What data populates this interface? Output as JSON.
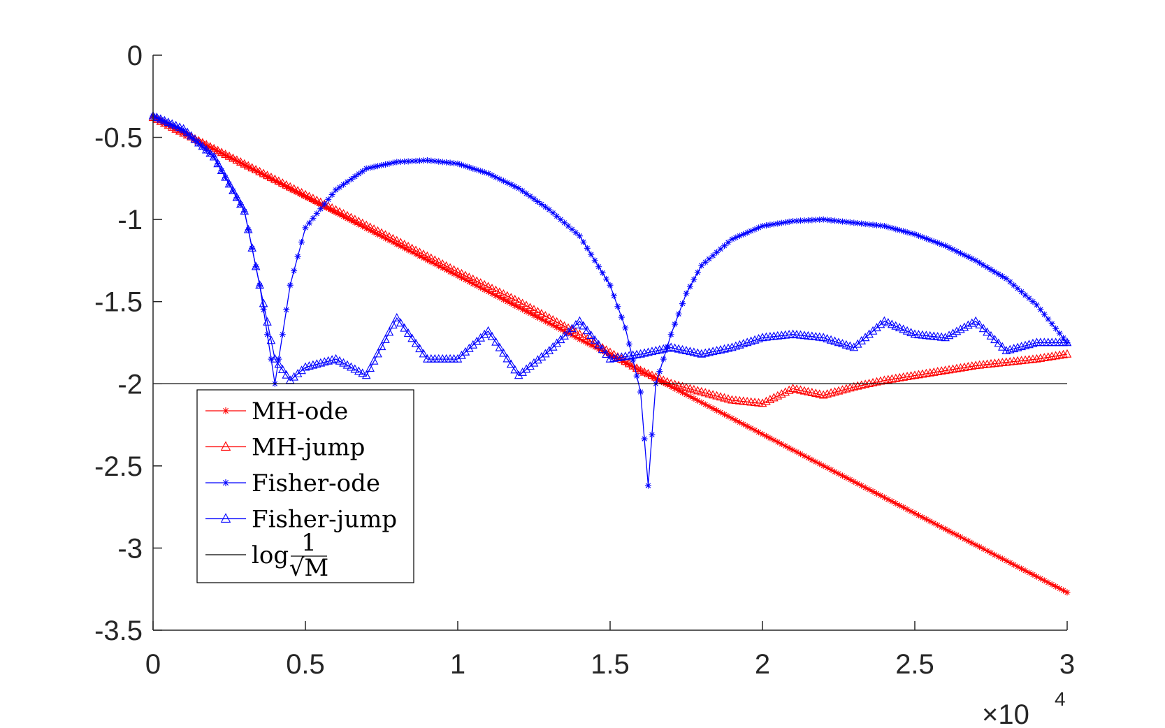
{
  "chart_data": {
    "type": "line",
    "title": "",
    "xlabel": "",
    "ylabel": "",
    "x_multiplier": "×10",
    "x_multiplier_exponent": "4",
    "xlim": [
      0,
      3
    ],
    "ylim": [
      -3.5,
      0
    ],
    "xticks": [
      "0",
      "0.5",
      "1",
      "1.5",
      "2",
      "2.5",
      "3"
    ],
    "yticks": [
      "0",
      "-0.5",
      "-1",
      "-1.5",
      "-2",
      "-2.5",
      "-3",
      "-3.5"
    ],
    "grid": false,
    "legend_position": "lower-left",
    "series": [
      {
        "name": "MH-ode",
        "color": "#ff0000",
        "marker": "star",
        "x": [
          0,
          3
        ],
        "y": [
          -0.38,
          -3.27
        ]
      },
      {
        "name": "MH-jump",
        "color": "#ff0000",
        "marker": "triangle",
        "x": [
          0,
          0.2,
          0.5,
          0.8,
          1.0,
          1.2,
          1.4,
          1.6,
          1.7,
          1.8,
          1.9,
          2.0,
          2.1,
          2.2,
          2.3,
          2.4,
          2.5,
          2.6,
          2.7,
          2.8,
          2.9,
          3.0
        ],
        "y": [
          -0.38,
          -0.57,
          -0.85,
          -1.13,
          -1.32,
          -1.5,
          -1.7,
          -1.92,
          -2.0,
          -2.05,
          -2.1,
          -2.12,
          -2.03,
          -2.07,
          -2.02,
          -1.98,
          -1.95,
          -1.92,
          -1.89,
          -1.87,
          -1.85,
          -1.82
        ]
      },
      {
        "name": "Fisher-ode",
        "color": "#0000ff",
        "marker": "star",
        "x": [
          0,
          0.1,
          0.2,
          0.3,
          0.35,
          0.4,
          0.45,
          0.5,
          0.6,
          0.7,
          0.8,
          0.9,
          1.0,
          1.1,
          1.2,
          1.3,
          1.4,
          1.5,
          1.55,
          1.6,
          1.625,
          1.65,
          1.7,
          1.75,
          1.8,
          1.9,
          2.0,
          2.1,
          2.2,
          2.3,
          2.4,
          2.5,
          2.6,
          2.7,
          2.8,
          2.9,
          3.0
        ],
        "y": [
          -0.37,
          -0.46,
          -0.62,
          -0.95,
          -1.4,
          -2.0,
          -1.4,
          -1.05,
          -0.82,
          -0.69,
          -0.65,
          -0.64,
          -0.66,
          -0.72,
          -0.81,
          -0.94,
          -1.1,
          -1.4,
          -1.66,
          -2.05,
          -2.62,
          -2.0,
          -1.7,
          -1.45,
          -1.28,
          -1.12,
          -1.04,
          -1.01,
          -1.0,
          -1.02,
          -1.04,
          -1.09,
          -1.16,
          -1.25,
          -1.36,
          -1.52,
          -1.75
        ]
      },
      {
        "name": "Fisher-jump",
        "color": "#0000ff",
        "marker": "triangle",
        "x": [
          0,
          0.1,
          0.2,
          0.3,
          0.35,
          0.4,
          0.45,
          0.5,
          0.6,
          0.7,
          0.8,
          0.9,
          1.0,
          1.1,
          1.2,
          1.3,
          1.4,
          1.5,
          1.6,
          1.7,
          1.8,
          1.9,
          2.0,
          2.1,
          2.2,
          2.3,
          2.4,
          2.5,
          2.6,
          2.7,
          2.8,
          2.9,
          3.0
        ],
        "y": [
          -0.37,
          -0.45,
          -0.62,
          -0.95,
          -1.4,
          -1.85,
          -1.98,
          -1.9,
          -1.85,
          -1.95,
          -1.6,
          -1.85,
          -1.85,
          -1.68,
          -1.95,
          -1.8,
          -1.62,
          -1.85,
          -1.82,
          -1.78,
          -1.82,
          -1.78,
          -1.72,
          -1.7,
          -1.72,
          -1.78,
          -1.62,
          -1.7,
          -1.72,
          -1.62,
          -1.8,
          -1.75,
          -1.75
        ]
      },
      {
        "name": "log 1/√M",
        "color": "#000000",
        "marker": "none",
        "x": [
          0,
          3
        ],
        "y": [
          -2,
          -2
        ]
      }
    ]
  }
}
